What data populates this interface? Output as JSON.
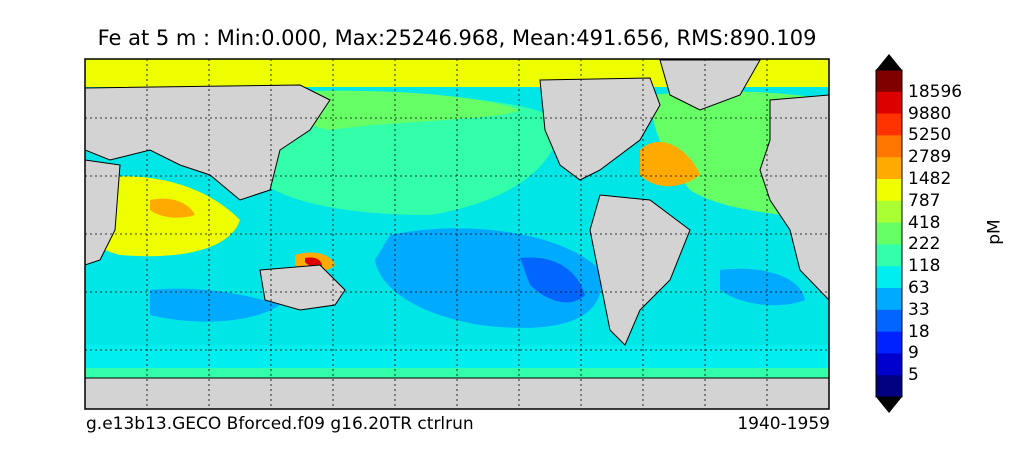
{
  "title": "Fe at 5 m : Min:0.000, Max:25246.968, Mean:491.656, RMS:890.109",
  "footer": {
    "left": "g.e13b13.GECO Bforced.f09 g16.20TR ctrlrun",
    "right": "1940-1959"
  },
  "colorbar": {
    "unit": "pM",
    "labels": [
      "18596",
      "9880",
      "5250",
      "2789",
      "1482",
      "787",
      "418",
      "222",
      "118",
      "63",
      "33",
      "18",
      "9",
      "5"
    ],
    "colors": [
      "#800000",
      "#dd0000",
      "#ff3300",
      "#ff7700",
      "#ffaa00",
      "#eeff00",
      "#aaff33",
      "#66ff66",
      "#33ffaa",
      "#00eeee",
      "#00aaff",
      "#0066ff",
      "#0022ff",
      "#0000cc",
      "#000080"
    ]
  },
  "map": {
    "land_color": "#d3d3d3",
    "ocean_color": "#00e5e5",
    "grid": true
  }
}
